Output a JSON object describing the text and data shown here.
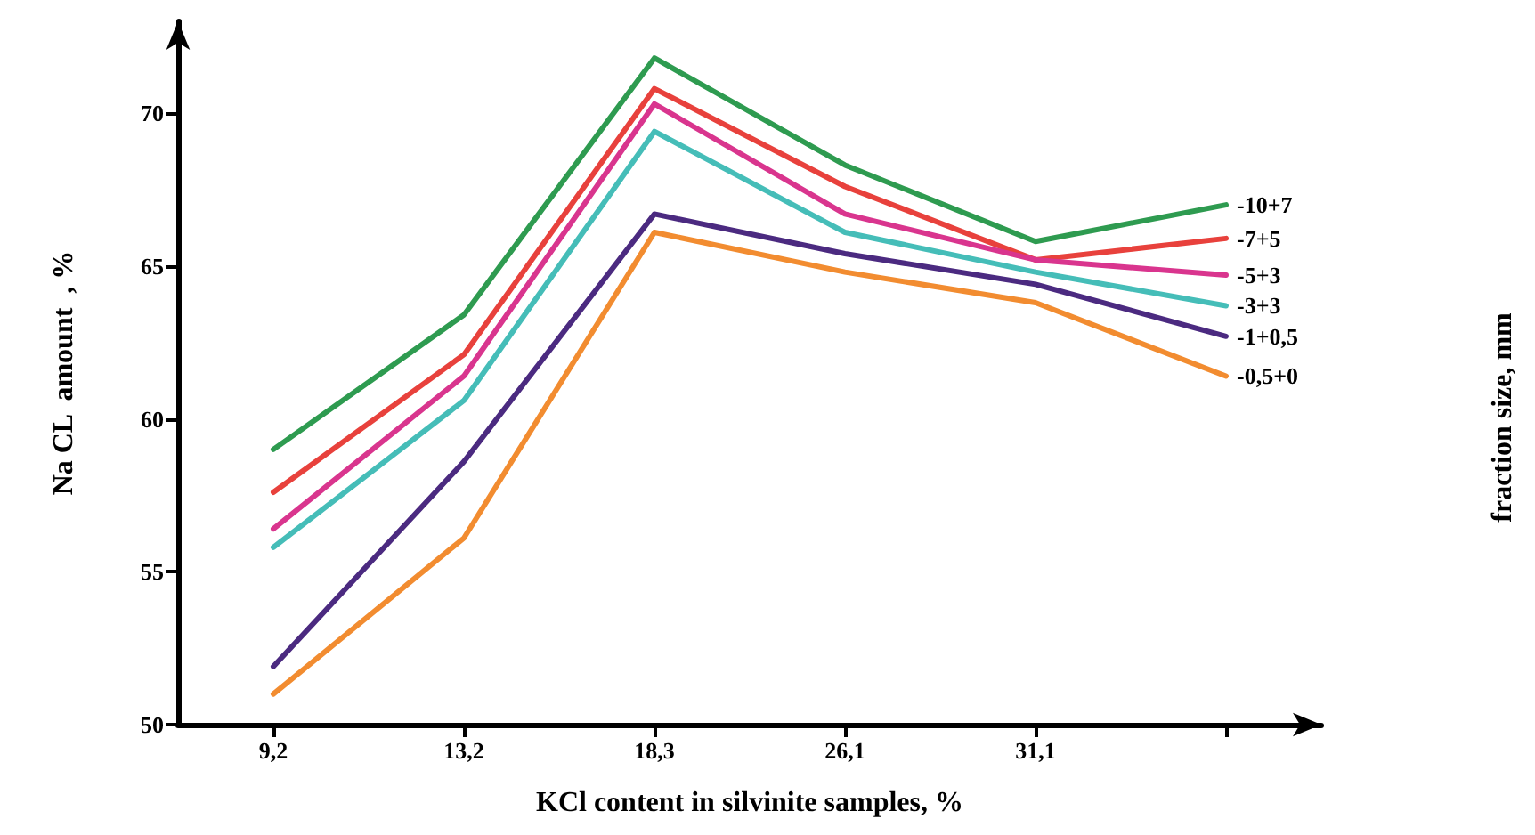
{
  "chart_data": {
    "type": "line",
    "xlabel": "KCl content in silvinite samples, %",
    "ylabel": "Na CL  amount  , %",
    "legend_title": "fraction size, mm",
    "categories": [
      "9,2",
      "13,2",
      "18,3",
      "26,1",
      "31,1",
      null
    ],
    "ylim": [
      50,
      73
    ],
    "yticks": [
      50,
      55,
      60,
      65,
      70
    ],
    "grid": false,
    "marker": "none",
    "line_style": "solid",
    "series": [
      {
        "name": "-10+7",
        "color": "#2e9b50",
        "values": [
          59.0,
          63.4,
          71.8,
          68.3,
          65.8,
          67.0
        ]
      },
      {
        "name": "-7+5",
        "color": "#e8413c",
        "values": [
          57.6,
          62.1,
          70.8,
          67.6,
          65.2,
          65.9
        ]
      },
      {
        "name": "-5+3",
        "color": "#d9358e",
        "values": [
          56.4,
          61.4,
          70.3,
          66.7,
          65.2,
          64.7
        ]
      },
      {
        "name": "-3+3",
        "color": "#45bdb8",
        "values": [
          55.8,
          60.6,
          69.4,
          66.1,
          64.8,
          63.7
        ]
      },
      {
        "name": "-1+0,5",
        "color": "#4b2a80",
        "values": [
          51.9,
          58.6,
          66.7,
          65.4,
          64.4,
          62.7
        ]
      },
      {
        "name": "-0,5+0",
        "color": "#f28c30",
        "values": [
          51.0,
          56.1,
          66.1,
          64.8,
          63.8,
          61.4
        ]
      }
    ]
  }
}
